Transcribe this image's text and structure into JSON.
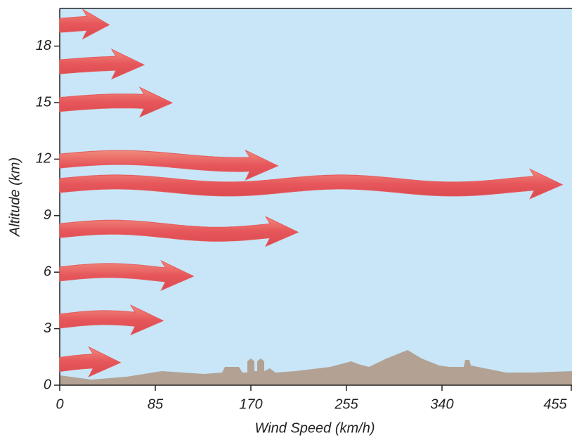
{
  "chart_data": {
    "type": "wind-arrows",
    "xlabel": "Wind Speed (km/h)",
    "ylabel": "Altitude (km)",
    "altitudes": [
      1.1,
      3.4,
      5.9,
      8.2,
      10.6,
      11.9,
      14.9,
      16.9,
      19.1
    ],
    "values": [
      54,
      92,
      119,
      212,
      447,
      194,
      100,
      75,
      44
    ],
    "color": "#e65a5c",
    "xlim": [
      0,
      455
    ],
    "xticks": [
      0,
      85,
      170,
      255,
      340,
      455
    ],
    "ylim": [
      0,
      20
    ],
    "yticks": [
      0,
      3,
      6,
      9,
      12,
      15,
      18
    ]
  }
}
